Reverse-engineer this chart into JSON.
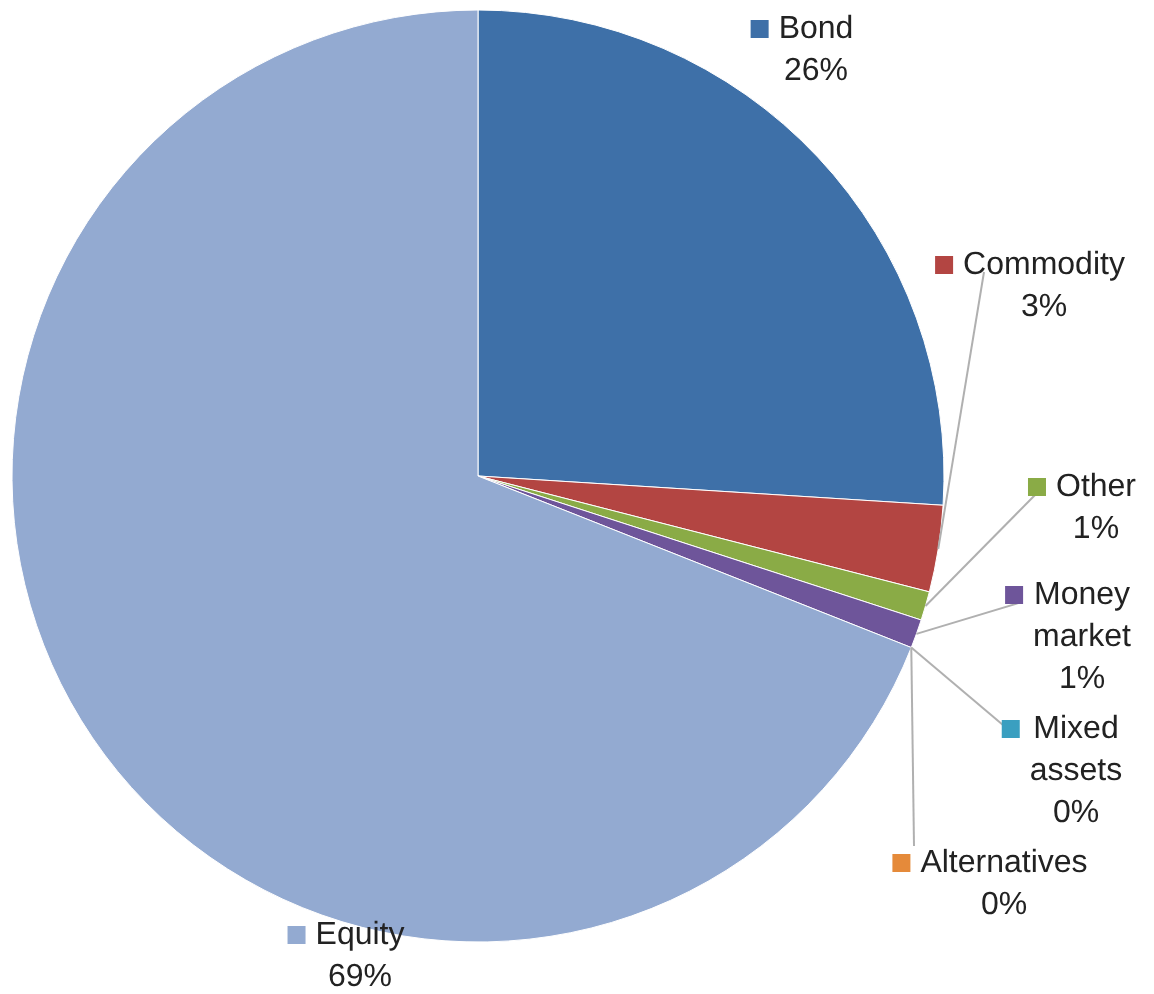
{
  "chart_data": {
    "type": "pie",
    "categories": [
      "Bond",
      "Commodity",
      "Other",
      "Money market",
      "Mixed assets",
      "Alternatives",
      "Equity"
    ],
    "values": [
      26,
      3,
      1,
      1,
      0,
      0,
      69
    ],
    "legend": "right",
    "value_labels": [
      "26%",
      "3%",
      "1%",
      "1%",
      "0%",
      "0%",
      "69%"
    ],
    "colors": [
      "#3e70a8",
      "#b34542",
      "#8aab46",
      "#6e559a",
      "#3a9fc0",
      "#e58a3a",
      "#93aad1"
    ]
  }
}
